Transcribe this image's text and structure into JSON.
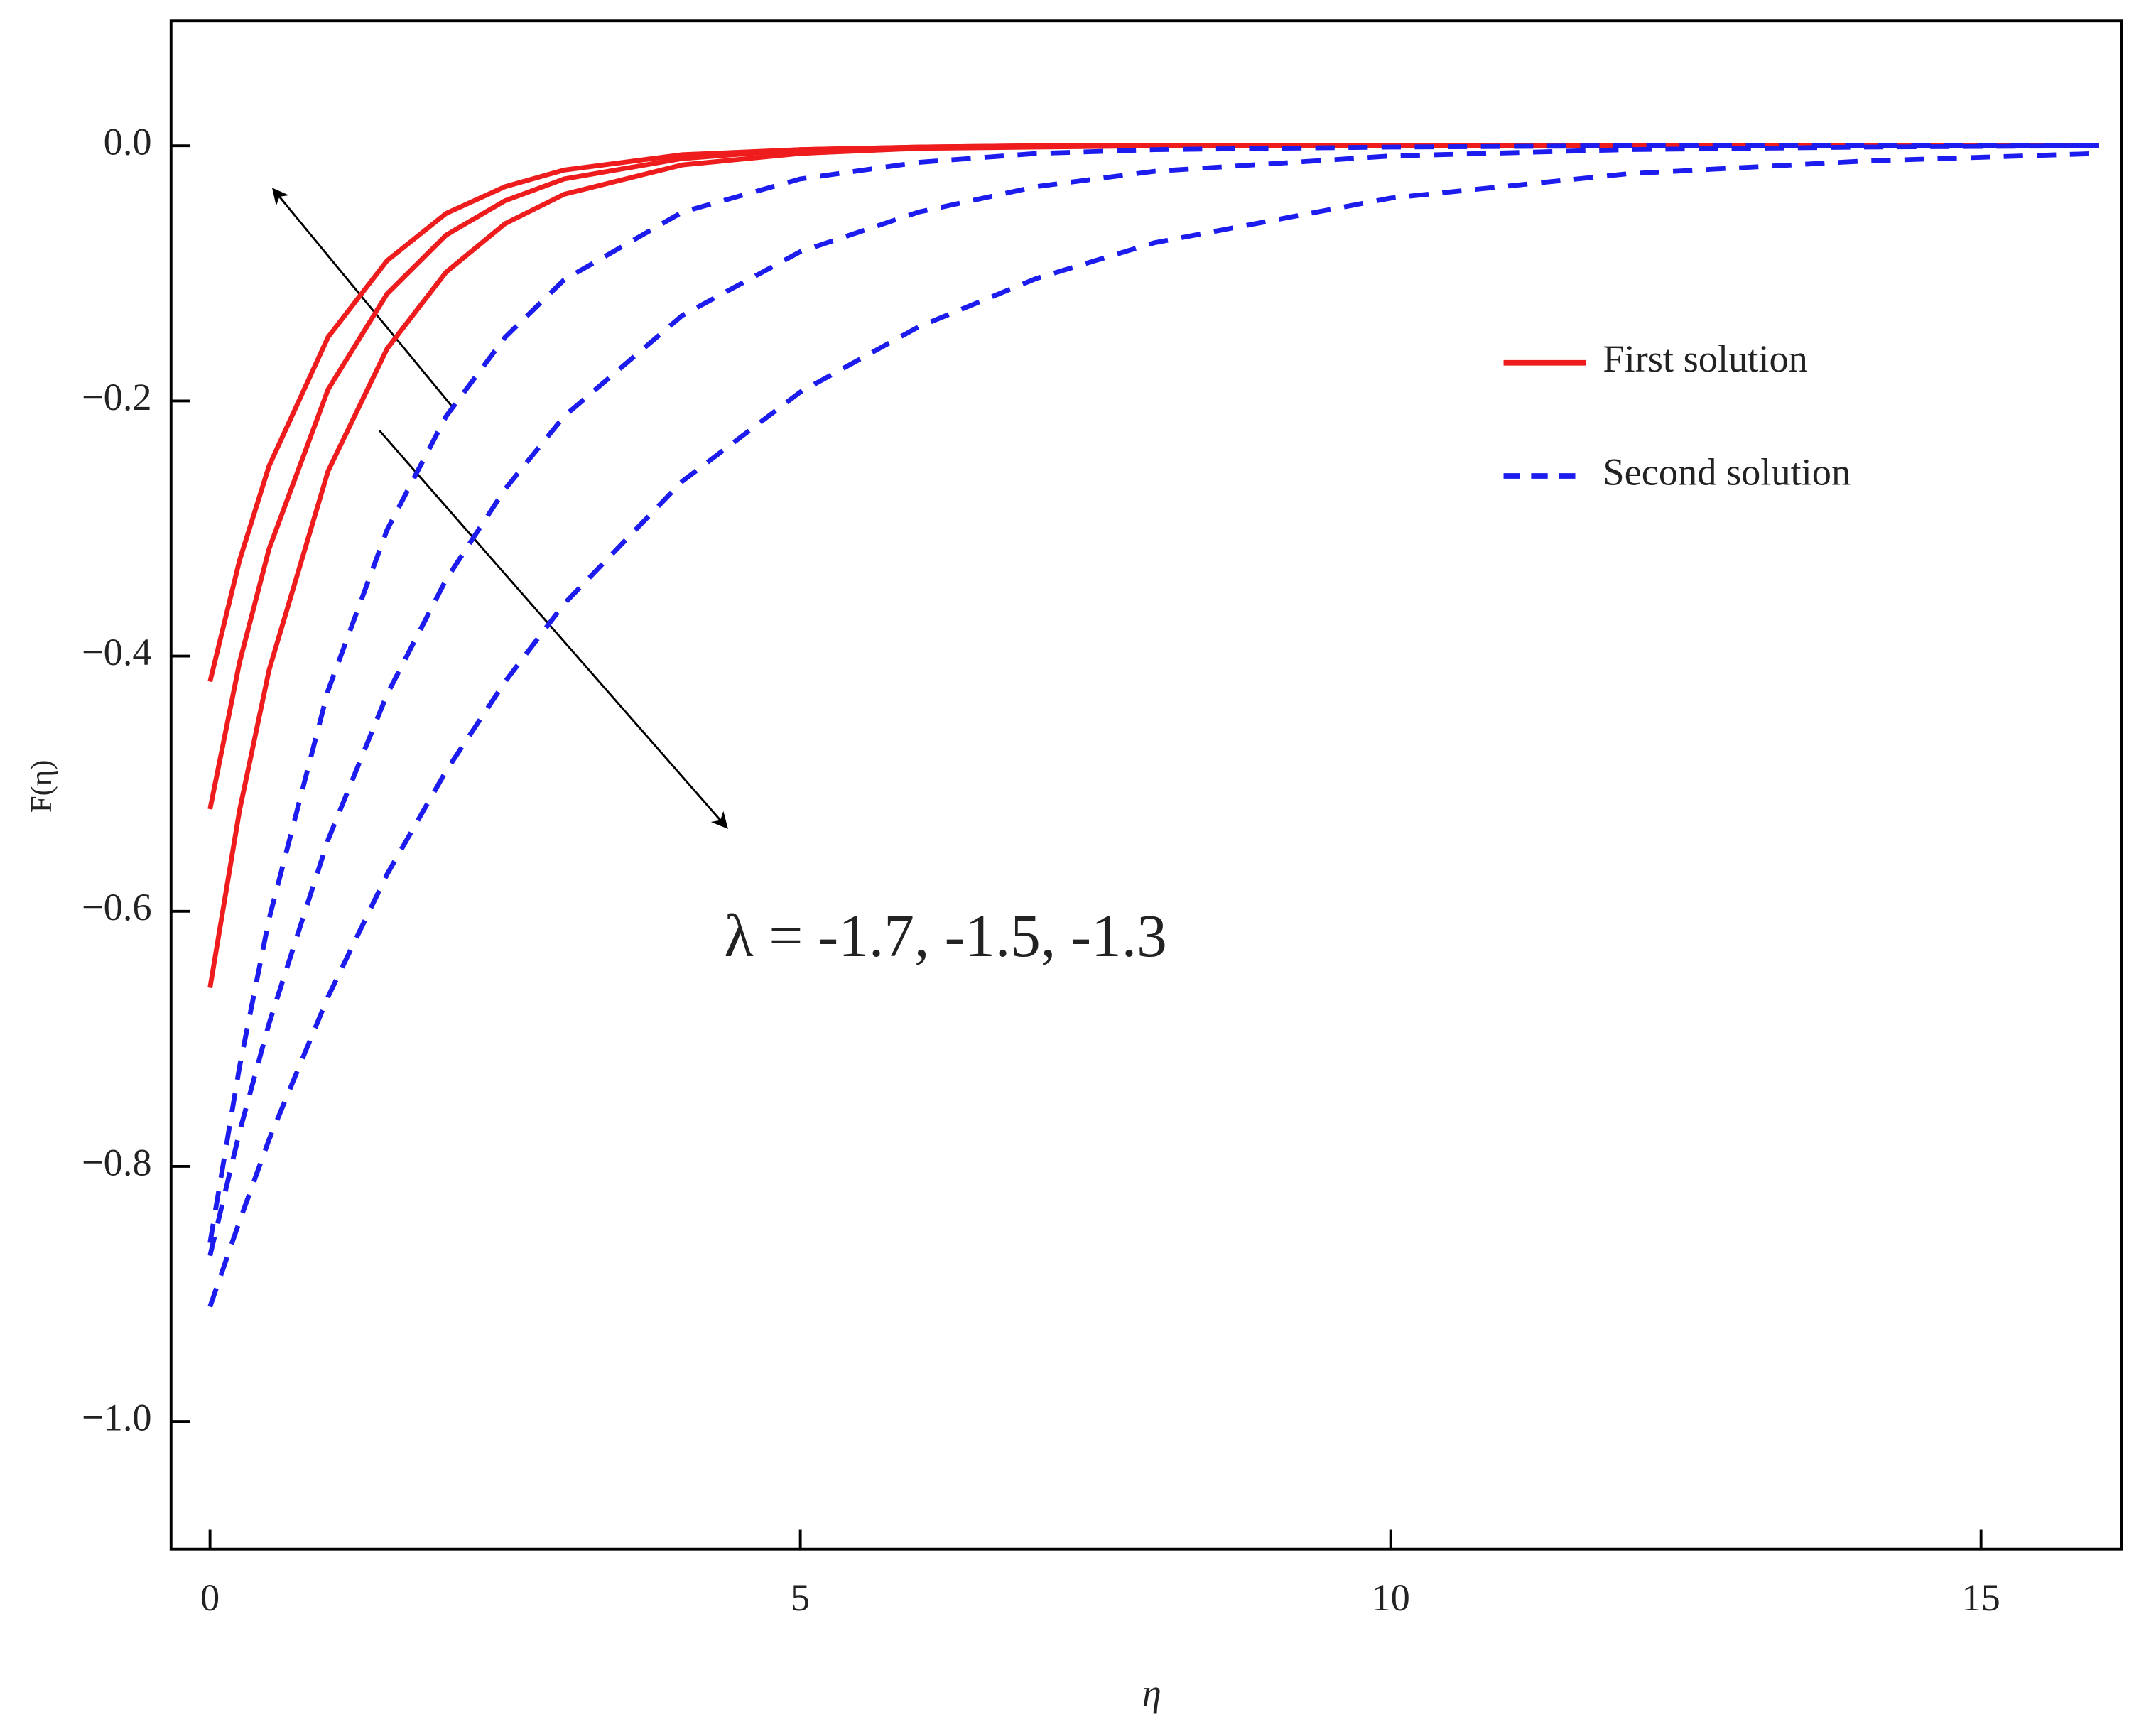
{
  "chart_data": {
    "type": "line",
    "x_label": "η",
    "y_label": "F(η)",
    "annotation": "λ = -1.7, -1.5, -1.3",
    "xlim": [
      -0.33,
      16.19
    ],
    "ylim": [
      -1.1,
      0.098
    ],
    "xticks": [
      0,
      5,
      10,
      15
    ],
    "yticks": [
      {
        "value": -1.0,
        "label": "−1.0"
      },
      {
        "value": -0.8,
        "label": "−0.8"
      },
      {
        "value": -0.6,
        "label": "−0.6"
      },
      {
        "value": -0.4,
        "label": "−0.4"
      },
      {
        "value": -0.2,
        "label": "−0.2"
      },
      {
        "value": 0.0,
        "label": "0.0"
      }
    ],
    "legend": [
      {
        "label": "First solution",
        "color": "#ee1c1c",
        "dashed": false
      },
      {
        "label": "Second solution",
        "color": "#1c1cee",
        "dashed": true
      }
    ],
    "x": [
      0,
      0.25,
      0.5,
      1,
      1.5,
      2,
      2.5,
      3,
      4,
      5,
      6,
      7,
      8,
      10,
      12,
      14,
      16
    ],
    "series": [
      {
        "color": "#ee1c1c",
        "dashed": false,
        "values": [
          -0.42,
          -0.325,
          -0.251,
          -0.15,
          -0.09,
          -0.053,
          -0.032,
          -0.019,
          -0.007,
          -0.003,
          -0.001,
          0,
          0,
          0,
          0,
          0,
          0
        ]
      },
      {
        "color": "#ee1c1c",
        "dashed": false,
        "values": [
          -0.52,
          -0.405,
          -0.316,
          -0.191,
          -0.116,
          -0.07,
          -0.043,
          -0.026,
          -0.01,
          -0.003,
          -0.001,
          0,
          0,
          0,
          0,
          0,
          0
        ]
      },
      {
        "color": "#ee1c1c",
        "dashed": false,
        "values": [
          -0.66,
          -0.521,
          -0.411,
          -0.255,
          -0.159,
          -0.099,
          -0.061,
          -0.038,
          -0.015,
          -0.006,
          -0.002,
          -0.001,
          0,
          0,
          0,
          0,
          0
        ]
      },
      {
        "color": "#1c1cee",
        "dashed": true,
        "values": [
          -0.86,
          -0.722,
          -0.606,
          -0.427,
          -0.301,
          -0.212,
          -0.15,
          -0.105,
          -0.052,
          -0.026,
          -0.013,
          -0.006,
          -0.003,
          -0.001,
          0,
          0,
          0
        ]
      },
      {
        "color": "#1c1cee",
        "dashed": true,
        "values": [
          -0.87,
          -0.773,
          -0.688,
          -0.544,
          -0.43,
          -0.34,
          -0.269,
          -0.212,
          -0.133,
          -0.083,
          -0.052,
          -0.032,
          -0.02,
          -0.008,
          -0.003,
          -0.001,
          0
        ]
      },
      {
        "color": "#1c1cee",
        "dashed": true,
        "values": [
          -0.91,
          -0.843,
          -0.779,
          -0.667,
          -0.571,
          -0.49,
          -0.42,
          -0.359,
          -0.263,
          -0.193,
          -0.142,
          -0.104,
          -0.076,
          -0.041,
          -0.022,
          -0.012,
          -0.006
        ]
      }
    ]
  }
}
